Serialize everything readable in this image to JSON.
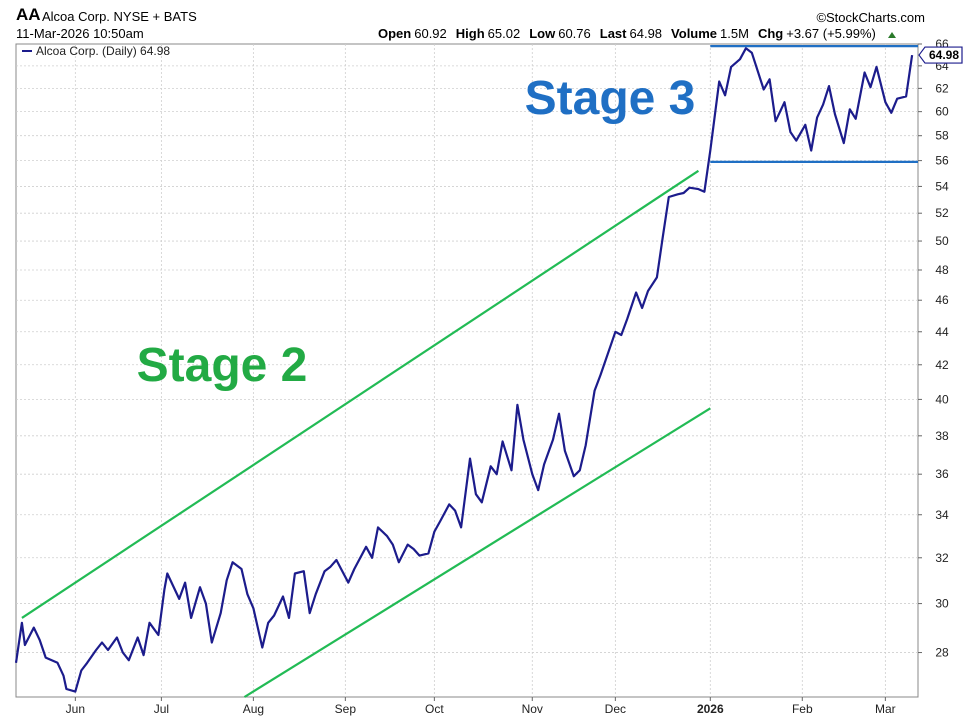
{
  "header": {
    "symbol": "AA",
    "company": "Alcoa Corp. NYSE + BATS",
    "datetime": "11-Mar-2026 10:50am",
    "source": "©StockCharts.com",
    "quote": [
      {
        "label": "Open",
        "value": "60.92"
      },
      {
        "label": "High",
        "value": "65.02"
      },
      {
        "label": "Low",
        "value": "60.76"
      },
      {
        "label": "Last",
        "value": "64.98"
      },
      {
        "label": "Volume",
        "value": "1.5M"
      },
      {
        "label": "Chg",
        "value": "+3.67 (+5.99%)"
      }
    ]
  },
  "colors": {
    "price": "#1c1c8c",
    "channel": "#22bb55",
    "range": "#1f6fc4",
    "stage2": "#22aa44",
    "stage3": "#1f6fc4",
    "grid": "#cfcfcf"
  },
  "chart_data": {
    "type": "line",
    "title": "",
    "legend": "Alcoa Corp. (Daily) 64.98",
    "legend_position": "top-left",
    "last_value_label": "64.98",
    "scale": "log",
    "ylim": [
      26.3,
      66
    ],
    "xlim": [
      "2025-05-13",
      "2026-03-13"
    ],
    "grid": true,
    "y_ticks": [
      28,
      30,
      32,
      34,
      36,
      38,
      40,
      42,
      44,
      46,
      48,
      50,
      52,
      54,
      56,
      58,
      60,
      62,
      64,
      66
    ],
    "x_ticks": [
      {
        "label": "Jun",
        "date": "2025-06-02"
      },
      {
        "label": "Jul",
        "date": "2025-07-01"
      },
      {
        "label": "Aug",
        "date": "2025-08-01"
      },
      {
        "label": "Sep",
        "date": "2025-09-01"
      },
      {
        "label": "Oct",
        "date": "2025-10-01"
      },
      {
        "label": "Nov",
        "date": "2025-11-03"
      },
      {
        "label": "Dec",
        "date": "2025-12-01"
      },
      {
        "label": "2026",
        "date": "2026-01-02",
        "bold": true
      },
      {
        "label": "Feb",
        "date": "2026-02-02"
      },
      {
        "label": "Mar",
        "date": "2026-03-02"
      }
    ],
    "series": [
      {
        "name": "Alcoa Corp. (Daily)",
        "points": [
          [
            "2025-05-13",
            27.6
          ],
          [
            "2025-05-15",
            29.2
          ],
          [
            "2025-05-16",
            28.3
          ],
          [
            "2025-05-19",
            29.0
          ],
          [
            "2025-05-21",
            28.5
          ],
          [
            "2025-05-23",
            27.8
          ],
          [
            "2025-05-27",
            27.6
          ],
          [
            "2025-05-29",
            27.1
          ],
          [
            "2025-05-30",
            26.6
          ],
          [
            "2025-06-02",
            26.5
          ],
          [
            "2025-06-04",
            27.3
          ],
          [
            "2025-06-06",
            27.6
          ],
          [
            "2025-06-09",
            28.1
          ],
          [
            "2025-06-11",
            28.4
          ],
          [
            "2025-06-13",
            28.1
          ],
          [
            "2025-06-16",
            28.6
          ],
          [
            "2025-06-18",
            28.0
          ],
          [
            "2025-06-20",
            27.7
          ],
          [
            "2025-06-23",
            28.6
          ],
          [
            "2025-06-25",
            27.9
          ],
          [
            "2025-06-27",
            29.2
          ],
          [
            "2025-06-30",
            28.7
          ],
          [
            "2025-07-02",
            30.6
          ],
          [
            "2025-07-03",
            31.3
          ],
          [
            "2025-07-07",
            30.2
          ],
          [
            "2025-07-09",
            30.9
          ],
          [
            "2025-07-11",
            29.4
          ],
          [
            "2025-07-14",
            30.7
          ],
          [
            "2025-07-16",
            30.0
          ],
          [
            "2025-07-18",
            28.4
          ],
          [
            "2025-07-21",
            29.6
          ],
          [
            "2025-07-23",
            31.0
          ],
          [
            "2025-07-25",
            31.8
          ],
          [
            "2025-07-28",
            31.5
          ],
          [
            "2025-07-30",
            30.4
          ],
          [
            "2025-08-01",
            29.8
          ],
          [
            "2025-08-04",
            28.2
          ],
          [
            "2025-08-06",
            29.2
          ],
          [
            "2025-08-08",
            29.5
          ],
          [
            "2025-08-11",
            30.3
          ],
          [
            "2025-08-13",
            29.4
          ],
          [
            "2025-08-15",
            31.3
          ],
          [
            "2025-08-18",
            31.4
          ],
          [
            "2025-08-20",
            29.6
          ],
          [
            "2025-08-22",
            30.4
          ],
          [
            "2025-08-25",
            31.4
          ],
          [
            "2025-08-27",
            31.6
          ],
          [
            "2025-08-29",
            31.9
          ],
          [
            "2025-09-02",
            30.9
          ],
          [
            "2025-09-04",
            31.5
          ],
          [
            "2025-09-08",
            32.5
          ],
          [
            "2025-09-10",
            32.0
          ],
          [
            "2025-09-12",
            33.4
          ],
          [
            "2025-09-15",
            33.0
          ],
          [
            "2025-09-17",
            32.6
          ],
          [
            "2025-09-19",
            31.8
          ],
          [
            "2025-09-22",
            32.6
          ],
          [
            "2025-09-24",
            32.4
          ],
          [
            "2025-09-26",
            32.1
          ],
          [
            "2025-09-29",
            32.2
          ],
          [
            "2025-10-01",
            33.2
          ],
          [
            "2025-10-03",
            33.7
          ],
          [
            "2025-10-06",
            34.5
          ],
          [
            "2025-10-08",
            34.2
          ],
          [
            "2025-10-10",
            33.4
          ],
          [
            "2025-10-13",
            36.8
          ],
          [
            "2025-10-15",
            35.0
          ],
          [
            "2025-10-17",
            34.6
          ],
          [
            "2025-10-20",
            36.4
          ],
          [
            "2025-10-22",
            36.0
          ],
          [
            "2025-10-24",
            37.7
          ],
          [
            "2025-10-27",
            36.2
          ],
          [
            "2025-10-29",
            39.7
          ],
          [
            "2025-10-31",
            37.8
          ],
          [
            "2025-11-03",
            36.0
          ],
          [
            "2025-11-05",
            35.2
          ],
          [
            "2025-11-07",
            36.5
          ],
          [
            "2025-11-10",
            37.8
          ],
          [
            "2025-11-12",
            39.2
          ],
          [
            "2025-11-14",
            37.2
          ],
          [
            "2025-11-17",
            35.9
          ],
          [
            "2025-11-19",
            36.2
          ],
          [
            "2025-11-21",
            37.5
          ],
          [
            "2025-11-24",
            40.5
          ],
          [
            "2025-11-26",
            41.4
          ],
          [
            "2025-12-01",
            44.0
          ],
          [
            "2025-12-03",
            43.8
          ],
          [
            "2025-12-05",
            44.8
          ],
          [
            "2025-12-08",
            46.5
          ],
          [
            "2025-12-10",
            45.5
          ],
          [
            "2025-12-12",
            46.6
          ],
          [
            "2025-12-15",
            47.5
          ],
          [
            "2025-12-17",
            50.3
          ],
          [
            "2025-12-19",
            53.2
          ],
          [
            "2025-12-22",
            53.4
          ],
          [
            "2025-12-24",
            53.5
          ],
          [
            "2025-12-26",
            53.9
          ],
          [
            "2025-12-29",
            53.8
          ],
          [
            "2025-12-31",
            53.6
          ],
          [
            "2026-01-02",
            56.8
          ],
          [
            "2026-01-05",
            62.6
          ],
          [
            "2026-01-07",
            61.4
          ],
          [
            "2026-01-09",
            63.9
          ],
          [
            "2026-01-12",
            64.6
          ],
          [
            "2026-01-14",
            65.6
          ],
          [
            "2026-01-16",
            65.2
          ],
          [
            "2026-01-20",
            61.9
          ],
          [
            "2026-01-22",
            62.8
          ],
          [
            "2026-01-24",
            59.2
          ],
          [
            "2026-01-27",
            60.8
          ],
          [
            "2026-01-29",
            58.3
          ],
          [
            "2026-01-31",
            57.6
          ],
          [
            "2026-02-03",
            58.9
          ],
          [
            "2026-02-05",
            56.8
          ],
          [
            "2026-02-07",
            59.5
          ],
          [
            "2026-02-09",
            60.6
          ],
          [
            "2026-02-11",
            62.2
          ],
          [
            "2026-02-13",
            59.8
          ],
          [
            "2026-02-16",
            57.4
          ],
          [
            "2026-02-18",
            60.2
          ],
          [
            "2026-02-20",
            59.4
          ],
          [
            "2026-02-23",
            63.4
          ],
          [
            "2026-02-25",
            62.1
          ],
          [
            "2026-02-27",
            63.9
          ],
          [
            "2026-03-02",
            60.8
          ],
          [
            "2026-03-04",
            59.9
          ],
          [
            "2026-03-06",
            61.1
          ],
          [
            "2026-03-09",
            61.3
          ],
          [
            "2026-03-11",
            64.98
          ]
        ]
      }
    ],
    "annotations": [
      {
        "label": "upper-channel",
        "from": [
          "2025-05-15",
          29.4
        ],
        "to": [
          "2025-12-29",
          55.2
        ]
      },
      {
        "label": "lower-channel",
        "from": [
          "2025-07-29",
          26.3
        ],
        "to": [
          "2026-01-02",
          39.5
        ]
      },
      {
        "label": "stage3-resistance",
        "from": [
          "2026-01-02",
          65.8
        ],
        "to": [
          "2026-03-13",
          65.8
        ]
      },
      {
        "label": "stage3-support",
        "from": [
          "2026-01-02",
          55.9
        ],
        "to": [
          "2026-03-13",
          55.9
        ]
      }
    ],
    "stage_labels": [
      "Stage 2",
      "Stage 3"
    ]
  }
}
